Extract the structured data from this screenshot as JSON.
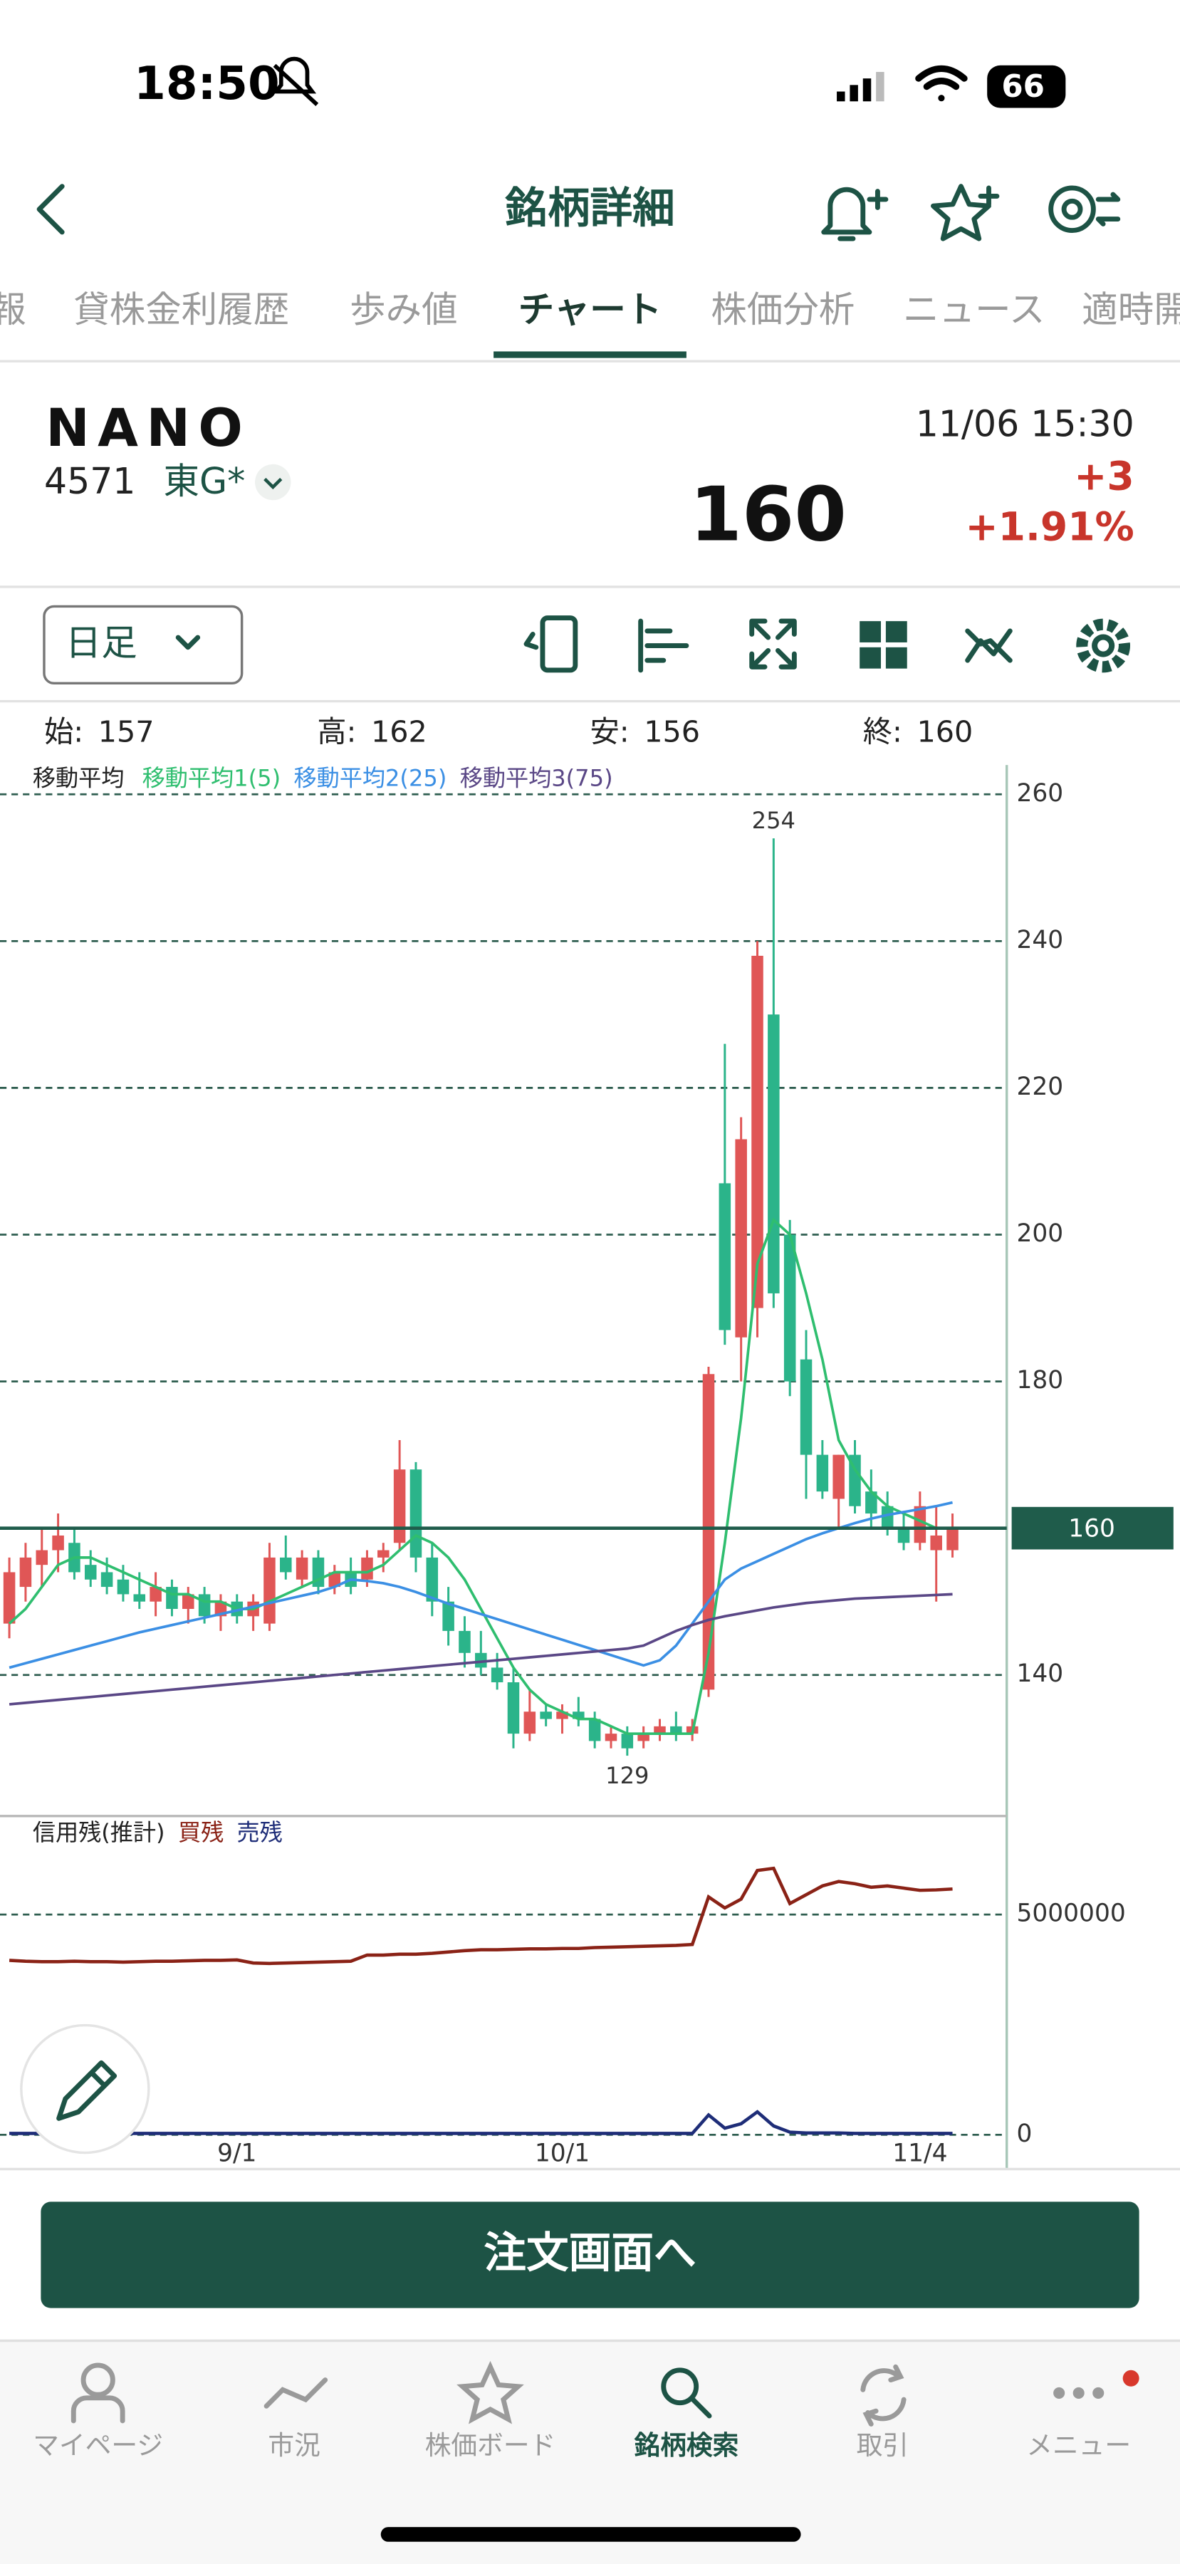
{
  "status_bar": {
    "time": "18:50",
    "battery": "66"
  },
  "header": {
    "title": "銘柄詳細"
  },
  "tabs": [
    "報",
    "貸株金利履歴",
    "歩み値",
    "チャート",
    "株価分析",
    "ニュース",
    "適時開"
  ],
  "active_tab": 3,
  "stock": {
    "name": "NANO",
    "code": "4571",
    "market": "東G*",
    "datetime": "11/06 15:30",
    "price": 160,
    "change": "+3",
    "change_pct": "+1.91%"
  },
  "chart_controls": {
    "period": "日足"
  },
  "ohlc_labels": [
    "始:",
    "高:",
    "安:",
    "終:"
  ],
  "chart_data": [
    {
      "type": "candlestick",
      "legend_title": "移動平均",
      "candles": {
        "open": [
          147,
          152,
          155,
          157,
          158,
          155,
          154,
          153,
          151,
          150,
          152,
          149,
          151,
          148,
          150,
          148,
          147,
          156,
          153,
          156,
          152,
          154,
          153,
          156,
          158,
          168,
          156,
          150,
          146,
          143,
          141,
          139,
          132,
          135,
          134,
          135,
          134,
          131,
          132,
          131,
          132,
          133,
          132,
          138,
          207,
          186,
          190,
          230,
          200,
          183,
          170,
          164,
          170,
          165,
          163,
          160,
          158,
          157,
          157
        ],
        "high": [
          156,
          158,
          160,
          162,
          160,
          157,
          156,
          155,
          154,
          154,
          153,
          152,
          152,
          151,
          151,
          151,
          158,
          159,
          157,
          157,
          155,
          156,
          157,
          158,
          172,
          169,
          158,
          152,
          148,
          146,
          143,
          141,
          138,
          136,
          136,
          137,
          135,
          133,
          133,
          133,
          134,
          135,
          134,
          182,
          226,
          216,
          240,
          254,
          202,
          187,
          172,
          170,
          172,
          168,
          165,
          162,
          165,
          163,
          162
        ],
        "low": [
          145,
          150,
          152,
          154,
          153,
          152,
          151,
          150,
          149,
          148,
          148,
          147,
          147,
          146,
          147,
          146,
          146,
          153,
          152,
          151,
          151,
          151,
          152,
          154,
          157,
          154,
          148,
          144,
          141,
          140,
          138,
          130,
          131,
          133,
          132,
          133,
          130,
          130,
          129,
          130,
          131,
          131,
          131,
          137,
          185,
          180,
          186,
          190,
          178,
          164,
          164,
          160,
          162,
          160,
          159,
          157,
          157,
          150,
          156
        ],
        "close": [
          154,
          156,
          157,
          159,
          154,
          153,
          152,
          151,
          150,
          152,
          149,
          151,
          148,
          150,
          148,
          150,
          156,
          154,
          156,
          152,
          154,
          152,
          156,
          157,
          168,
          156,
          150,
          146,
          143,
          141,
          139,
          132,
          135,
          134,
          135,
          134,
          131,
          132,
          130,
          132,
          133,
          132,
          133,
          181,
          187,
          213,
          238,
          192,
          180,
          170,
          165,
          170,
          163,
          162,
          160,
          158,
          163,
          159,
          160
        ]
      },
      "up_color": "#e05656",
      "down_color": "#2bb48a",
      "series": [
        {
          "name": "移動平均1(5)",
          "color": "#2fbe6f",
          "values": [
            147,
            149,
            152,
            155,
            156,
            156,
            155,
            154,
            153,
            152,
            151,
            151,
            150,
            150,
            149,
            149,
            150,
            151,
            152,
            153,
            154,
            154,
            154,
            155,
            157,
            159,
            158,
            156,
            153,
            149,
            145,
            141,
            138,
            136,
            135,
            134,
            134,
            133,
            132,
            132,
            132,
            132,
            132,
            143,
            158,
            175,
            196,
            202,
            200,
            192,
            183,
            172,
            168,
            165,
            163,
            162,
            161,
            160,
            160
          ]
        },
        {
          "name": "移動平均2(25)",
          "color": "#3b8fe4",
          "values": [
            141,
            141.6,
            142.2,
            142.8,
            143.4,
            144,
            144.6,
            145.2,
            145.8,
            146.3,
            146.8,
            147.3,
            147.8,
            148.3,
            148.8,
            149.3,
            149.8,
            150.3,
            150.8,
            151.3,
            152,
            153,
            152.8,
            152.5,
            152,
            151.3,
            150.5,
            149.7,
            149,
            148.3,
            147.6,
            146.9,
            146.2,
            145.5,
            144.8,
            144.1,
            143.4,
            142.7,
            142,
            141.3,
            142,
            144,
            147,
            150,
            153,
            154.5,
            155.5,
            156.5,
            157.5,
            158.5,
            159.3,
            160,
            160.7,
            161.3,
            161.8,
            162.2,
            162.6,
            163,
            163.5
          ]
        },
        {
          "name": "移動平均3(75)",
          "color": "#5a4786",
          "values": [
            136,
            136.2,
            136.4,
            136.6,
            136.8,
            137,
            137.2,
            137.4,
            137.6,
            137.8,
            138,
            138.2,
            138.4,
            138.6,
            138.8,
            139,
            139.2,
            139.4,
            139.6,
            139.8,
            140,
            140.2,
            140.4,
            140.6,
            140.8,
            141,
            141.2,
            141.4,
            141.6,
            141.8,
            142,
            142.2,
            142.4,
            142.6,
            142.8,
            143,
            143.2,
            143.4,
            143.6,
            144,
            145,
            146,
            146.8,
            147.5,
            148,
            148.4,
            148.8,
            149.2,
            149.5,
            149.8,
            150,
            150.2,
            150.4,
            150.5,
            150.6,
            150.7,
            150.8,
            150.9,
            151
          ]
        }
      ],
      "current_price": 160,
      "current_price_color": "#1f5c4b",
      "ylim": [
        121,
        264
      ],
      "yticks": [
        140,
        180,
        200,
        220,
        240,
        260
      ],
      "grid": true
    },
    {
      "type": "line",
      "title": "信用残(推計)",
      "categories": [
        null,
        null,
        null,
        null,
        null,
        null,
        null,
        null,
        null,
        null,
        null,
        null,
        null,
        null,
        "9/1",
        null,
        null,
        null,
        null,
        null,
        null,
        null,
        null,
        null,
        null,
        null,
        null,
        null,
        null,
        null,
        null,
        null,
        null,
        null,
        "10/1",
        null,
        null,
        null,
        null,
        null,
        null,
        null,
        null,
        null,
        null,
        null,
        null,
        null,
        null,
        null,
        null,
        null,
        null,
        null,
        null,
        null,
        "11/4",
        null,
        null
      ],
      "series": [
        {
          "name": "買残",
          "color": "#8a2216",
          "values": [
            3960000,
            3940000,
            3930000,
            3930000,
            3940000,
            3930000,
            3930000,
            3920000,
            3930000,
            3940000,
            3940000,
            3950000,
            3960000,
            3960000,
            3970000,
            3900000,
            3890000,
            3900000,
            3910000,
            3920000,
            3930000,
            3940000,
            4080000,
            4080000,
            4100000,
            4100000,
            4120000,
            4150000,
            4180000,
            4200000,
            4200000,
            4210000,
            4220000,
            4220000,
            4230000,
            4230000,
            4250000,
            4260000,
            4270000,
            4280000,
            4290000,
            4300000,
            4320000,
            5400000,
            5150000,
            5350000,
            6000000,
            6050000,
            5250000,
            5450000,
            5650000,
            5750000,
            5700000,
            5620000,
            5650000,
            5600000,
            5550000,
            5560000,
            5580000
          ]
        },
        {
          "name": "売残",
          "color": "#1e2d78",
          "values": [
            30000,
            30000,
            30000,
            30000,
            30000,
            30000,
            30000,
            30000,
            30000,
            30000,
            30000,
            30000,
            30000,
            30000,
            30000,
            30000,
            30000,
            30000,
            30000,
            30000,
            30000,
            30000,
            30000,
            30000,
            30000,
            30000,
            30000,
            30000,
            30000,
            30000,
            30000,
            30000,
            30000,
            30000,
            30000,
            30000,
            30000,
            30000,
            30000,
            30000,
            30000,
            30000,
            30000,
            450000,
            150000,
            250000,
            520000,
            200000,
            60000,
            40000,
            40000,
            40000,
            30000,
            30000,
            30000,
            30000,
            30000,
            30000,
            30000
          ]
        }
      ],
      "ylim": [
        0,
        7200000
      ],
      "yticks": [
        0,
        5000000
      ],
      "grid": true
    }
  ],
  "order_button": "注文画面へ",
  "tab_bar": [
    "マイページ",
    "市況",
    "株価ボード",
    "銘柄検索",
    "取引",
    "メニュー"
  ],
  "tab_bar_active": 3
}
